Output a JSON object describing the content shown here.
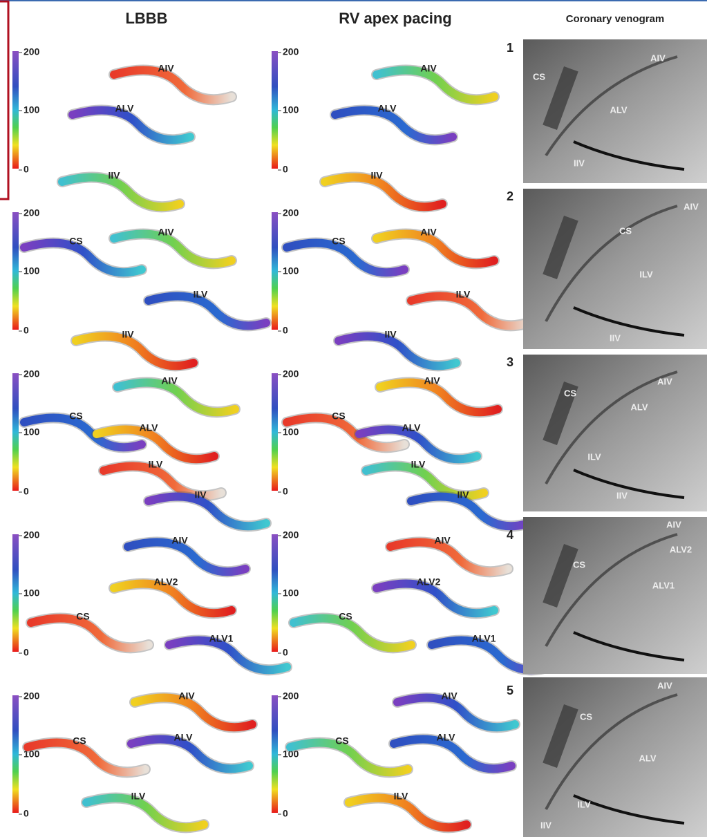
{
  "headers": [
    "LBBB",
    "RV apex pacing",
    "Coronary venogram"
  ],
  "rows": [
    {
      "number": "1",
      "lbbb": {
        "scale": [
          "200",
          "100",
          "0"
        ],
        "labels": [
          "AIV",
          "ALV",
          "IIV"
        ]
      },
      "rv": {
        "scale": [
          "200",
          "100",
          "0"
        ],
        "labels": [
          "AIV",
          "ALV",
          "IIV"
        ]
      },
      "venogram": {
        "labels": [
          "CS",
          "AIV",
          "ALV",
          "IIV"
        ]
      }
    },
    {
      "number": "2",
      "lbbb": {
        "scale": [
          "200",
          "100",
          "0"
        ],
        "labels": [
          "CS",
          "AIV",
          "ILV",
          "IIV"
        ]
      },
      "rv": {
        "scale": [
          "200",
          "100",
          "0"
        ],
        "labels": [
          "CS",
          "AIV",
          "ILV",
          "IIV"
        ]
      },
      "venogram": {
        "labels": [
          "AIV",
          "CS",
          "ILV",
          "IIV"
        ]
      }
    },
    {
      "number": "3",
      "lbbb": {
        "scale": [
          "200",
          "100",
          "0"
        ],
        "labels": [
          "AIV",
          "CS",
          "ALV",
          "ILV",
          "IIV"
        ]
      },
      "rv": {
        "scale": [
          "200",
          "100",
          "0"
        ],
        "labels": [
          "AIV",
          "CS",
          "ALV",
          "ILV",
          "IIV"
        ]
      },
      "venogram": {
        "labels": [
          "AIV",
          "CS",
          "ALV",
          "ILV",
          "IIV"
        ]
      }
    },
    {
      "number": "4",
      "lbbb": {
        "scale": [
          "200",
          "100",
          "0"
        ],
        "labels": [
          "AIV",
          "ALV2",
          "CS",
          "ALV1"
        ]
      },
      "rv": {
        "scale": [
          "200",
          "100",
          "0"
        ],
        "labels": [
          "AIV",
          "ALV2",
          "CS",
          "ALV1"
        ]
      },
      "venogram": {
        "labels": [
          "AIV",
          "ALV2",
          "CS",
          "ALV1"
        ]
      }
    },
    {
      "number": "5",
      "lbbb": {
        "scale": [
          "200",
          "100",
          "0"
        ],
        "labels": [
          "AIV",
          "CS",
          "ALV",
          "ILV"
        ]
      },
      "rv": {
        "scale": [
          "200",
          "100",
          "0"
        ],
        "labels": [
          "AIV",
          "CS",
          "ALV",
          "ILV"
        ]
      },
      "venogram": {
        "labels": [
          "AIV",
          "CS",
          "ALV",
          "ILV",
          "IIV"
        ]
      }
    }
  ]
}
